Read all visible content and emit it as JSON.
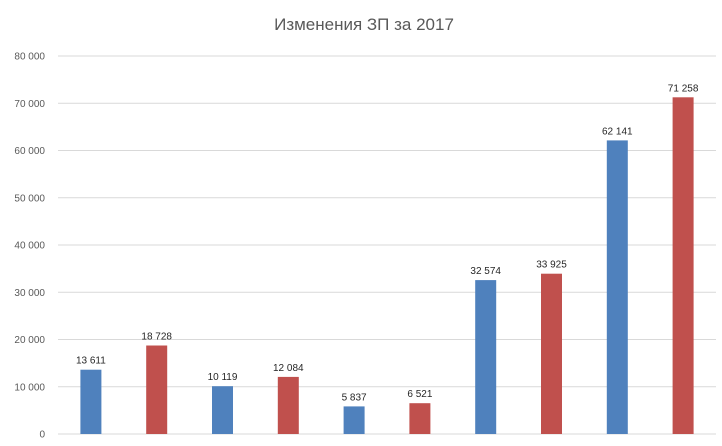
{
  "chart_data": {
    "type": "bar",
    "title": "Изменения ЗП за 2017",
    "xlabel": "",
    "ylabel": "",
    "ylim": [
      0,
      80000
    ],
    "y_ticks": [
      0,
      10000,
      20000,
      30000,
      40000,
      50000,
      60000,
      70000,
      80000
    ],
    "y_tick_labels": [
      "0",
      "10 000",
      "20 000",
      "30 000",
      "40 000",
      "50 000",
      "60 000",
      "70 000",
      "80 000"
    ],
    "grid": true,
    "legend": "none",
    "bars": [
      {
        "value": 13611,
        "label": "13 611",
        "color": "#4f81bd"
      },
      {
        "value": 18728,
        "label": "18 728",
        "color": "#c0504d"
      },
      {
        "value": 10119,
        "label": "10 119",
        "color": "#4f81bd"
      },
      {
        "value": 12084,
        "label": "12 084",
        "color": "#c0504d"
      },
      {
        "value": 5837,
        "label": "5 837",
        "color": "#4f81bd"
      },
      {
        "value": 6521,
        "label": "6 521",
        "color": "#c0504d"
      },
      {
        "value": 32574,
        "label": "32 574",
        "color": "#4f81bd"
      },
      {
        "value": 33925,
        "label": "33 925",
        "color": "#c0504d"
      },
      {
        "value": 62141,
        "label": "62 141",
        "color": "#4f81bd"
      },
      {
        "value": 71258,
        "label": "71 258",
        "color": "#c0504d"
      }
    ]
  }
}
